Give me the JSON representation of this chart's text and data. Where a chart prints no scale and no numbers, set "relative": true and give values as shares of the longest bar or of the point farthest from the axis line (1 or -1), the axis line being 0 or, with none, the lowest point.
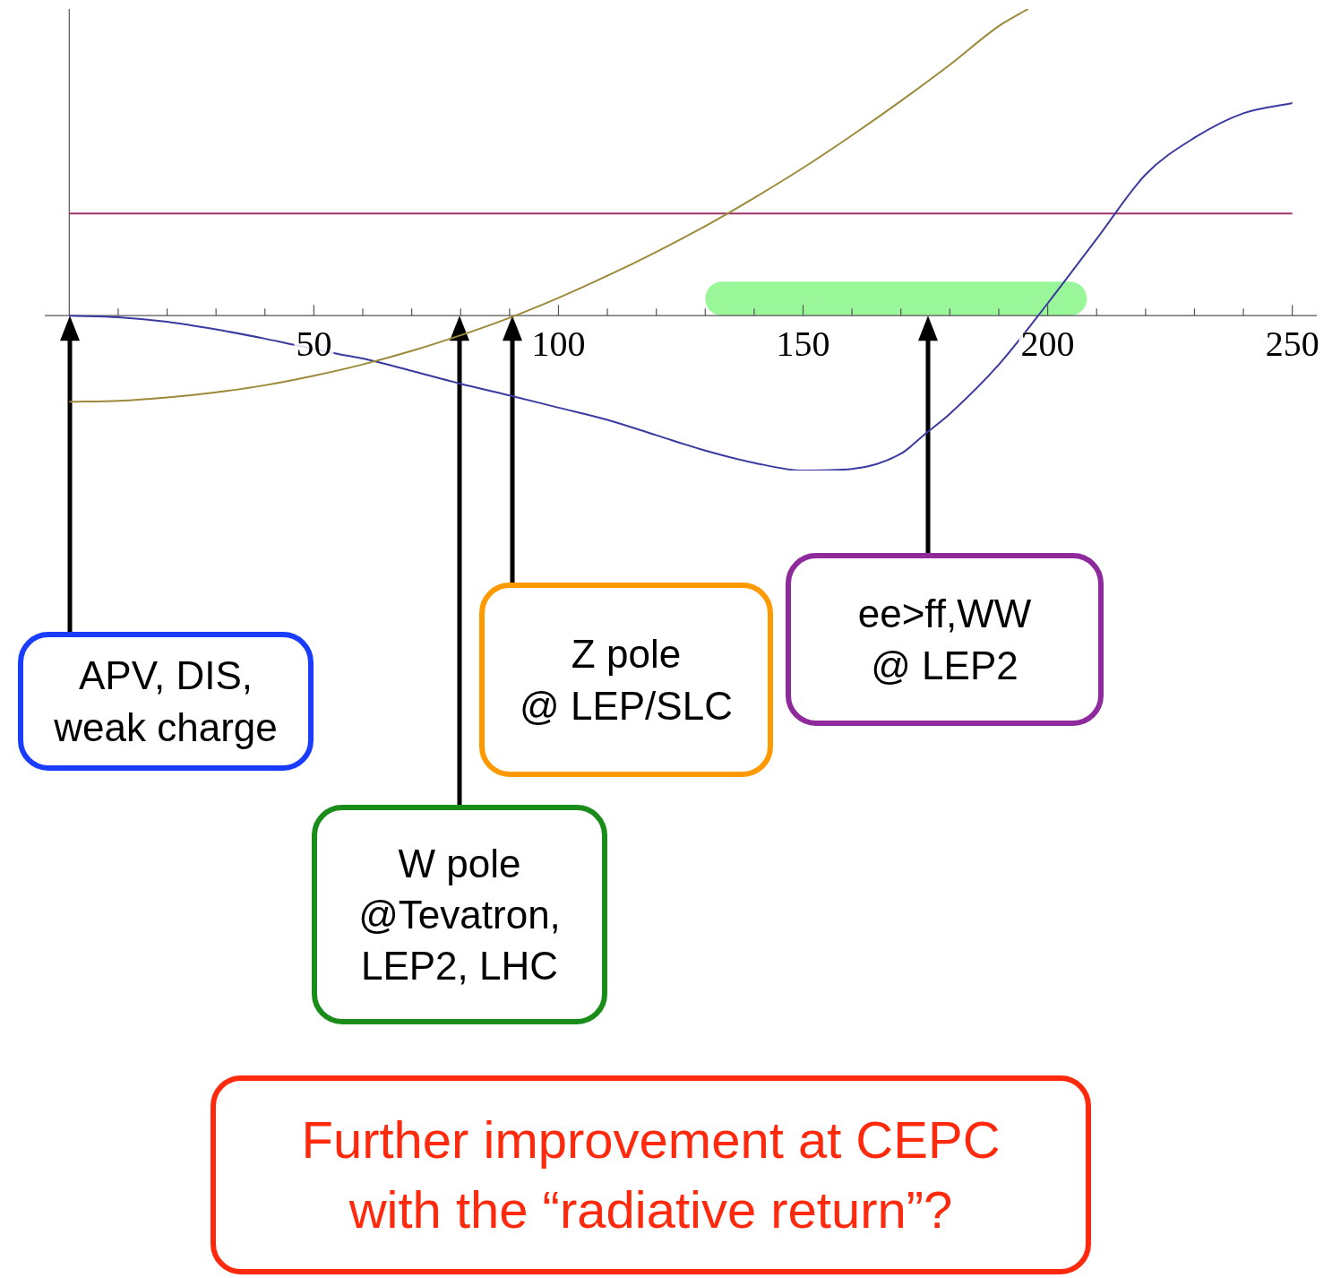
{
  "chart_data": {
    "type": "line",
    "relative": true,
    "xlim": [
      -5,
      255
    ],
    "xticks": [
      {
        "value": 10,
        "label": null
      },
      {
        "value": 20,
        "label": null
      },
      {
        "value": 30,
        "label": null
      },
      {
        "value": 40,
        "label": null
      },
      50,
      {
        "value": 60,
        "label": null
      },
      {
        "value": 70,
        "label": null
      },
      {
        "value": 80,
        "label": null
      },
      {
        "value": 90,
        "label": null
      },
      100,
      {
        "value": 110,
        "label": null
      },
      {
        "value": 120,
        "label": null
      },
      {
        "value": 130,
        "label": null
      },
      {
        "value": 140,
        "label": null
      },
      150,
      {
        "value": 160,
        "label": null
      },
      {
        "value": 170,
        "label": null
      },
      {
        "value": 180,
        "label": null
      },
      {
        "value": 190,
        "label": null
      },
      200,
      {
        "value": 210,
        "label": null
      },
      {
        "value": 220,
        "label": null
      },
      {
        "value": 230,
        "label": null
      },
      {
        "value": 240,
        "label": null
      },
      250
    ],
    "series": [
      {
        "color": "#9c8a3a",
        "x": [
          0,
          10,
          20,
          30,
          40,
          50,
          60,
          70,
          80,
          90,
          100,
          110,
          120,
          130,
          140,
          150,
          160,
          170,
          180,
          190,
          196
        ],
        "values": [
          -0.281,
          -0.278,
          -0.267,
          -0.25,
          -0.227,
          -0.196,
          -0.159,
          -0.115,
          -0.064,
          -0.007,
          0.058,
          0.13,
          0.208,
          0.292,
          0.384,
          0.482,
          0.588,
          0.7,
          0.818,
          0.944,
          1
        ]
      },
      {
        "color": "#3a3aa0",
        "x": [
          0,
          10,
          20,
          30,
          40,
          45,
          55,
          60,
          70,
          80,
          90,
          100,
          110,
          120,
          130,
          140,
          150,
          160,
          170,
          175,
          180,
          190,
          200,
          210,
          220,
          230,
          240,
          250
        ],
        "values": [
          0,
          -0.005,
          -0.02,
          -0.045,
          -0.075,
          -0.092,
          -0.125,
          -0.14,
          -0.18,
          -0.222,
          -0.26,
          -0.3,
          -0.34,
          -0.39,
          -0.44,
          -0.48,
          -0.505,
          -0.5,
          -0.45,
          -0.385,
          -0.32,
          -0.16,
          0.04,
          0.25,
          0.46,
          0.58,
          0.66,
          0.693
        ]
      },
      {
        "color": "#a0306a",
        "x": [
          0,
          250
        ],
        "values": [
          0.333,
          0.333
        ]
      }
    ],
    "bands": [
      {
        "axis": "x",
        "from": 130,
        "to": 208,
        "color": "#99f799"
      }
    ],
    "annotations": [
      "APV, DIS,\nweak charge",
      "W pole\n@Tevatron,\nLEP2, LHC",
      "Z pole\n@ LEP/SLC",
      "ee>ff,WW\n@ LEP2",
      "Further improvement at CEPC\nwith the “radiative return”?"
    ]
  }
}
